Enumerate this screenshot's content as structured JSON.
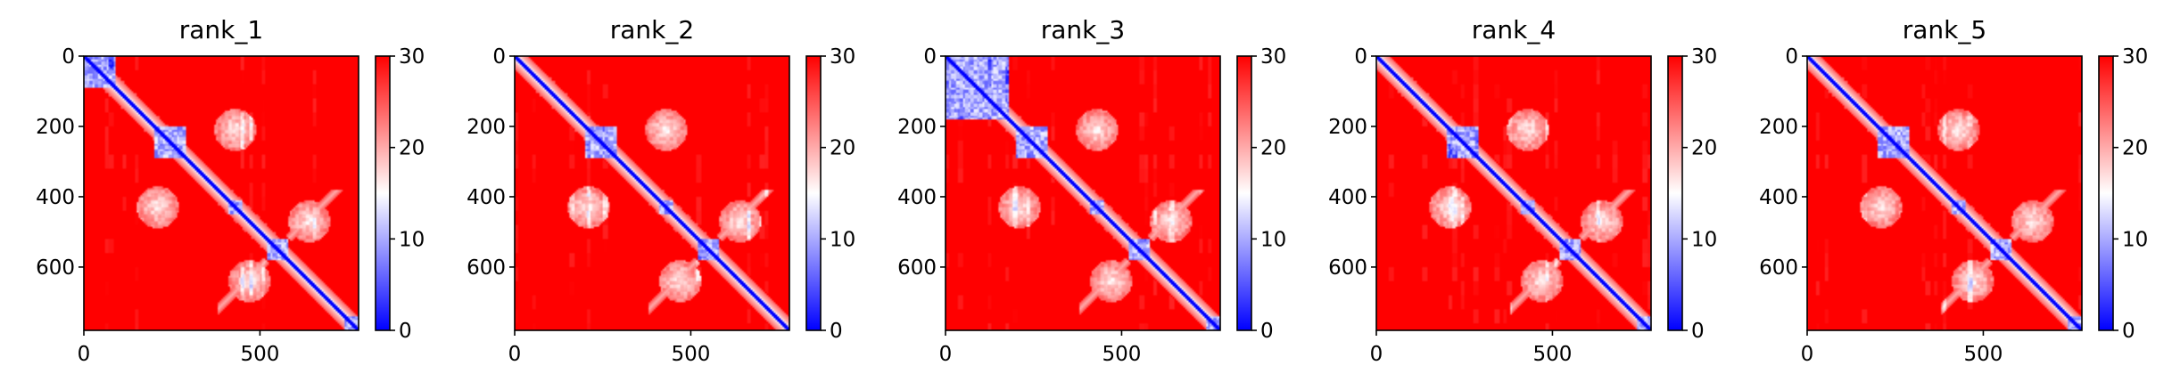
{
  "chart_data": [
    {
      "type": "heatmap",
      "title": "rank_1",
      "matrix_size": 780,
      "xlim": [
        0,
        780
      ],
      "ylim": [
        780,
        0
      ],
      "x_ticks": [
        0,
        500
      ],
      "y_ticks": [
        0,
        200,
        400,
        600
      ],
      "colorbar": {
        "range": [
          0,
          30
        ],
        "ticks": [
          0,
          10,
          20,
          30
        ],
        "colormap": "bwr"
      },
      "value_range": [
        0,
        30
      ],
      "diagonal_domains": [
        [
          0,
          90
        ],
        [
          200,
          290
        ],
        [
          410,
          450
        ],
        [
          520,
          580
        ],
        [
          740,
          780
        ]
      ],
      "contact_blocks": [
        [
          210,
          430
        ],
        [
          470,
          640
        ]
      ]
    },
    {
      "type": "heatmap",
      "title": "rank_2",
      "matrix_size": 780,
      "xlim": [
        0,
        780
      ],
      "ylim": [
        780,
        0
      ],
      "x_ticks": [
        0,
        500
      ],
      "y_ticks": [
        0,
        200,
        400,
        600
      ],
      "colorbar": {
        "range": [
          0,
          30
        ],
        "ticks": [
          0,
          10,
          20,
          30
        ],
        "colormap": "bwr"
      },
      "value_range": [
        0,
        30
      ],
      "diagonal_domains": [
        [
          200,
          290
        ],
        [
          410,
          450
        ],
        [
          520,
          580
        ]
      ],
      "contact_blocks": [
        [
          210,
          430
        ],
        [
          470,
          640
        ]
      ]
    },
    {
      "type": "heatmap",
      "title": "rank_3",
      "matrix_size": 780,
      "xlim": [
        0,
        780
      ],
      "ylim": [
        780,
        0
      ],
      "x_ticks": [
        0,
        500
      ],
      "y_ticks": [
        0,
        200,
        400,
        600
      ],
      "colorbar": {
        "range": [
          0,
          30
        ],
        "ticks": [
          0,
          10,
          20,
          30
        ],
        "colormap": "bwr"
      },
      "value_range": [
        0,
        30
      ],
      "diagonal_domains": [
        [
          0,
          180
        ],
        [
          200,
          290
        ],
        [
          410,
          450
        ],
        [
          520,
          580
        ],
        [
          740,
          780
        ]
      ],
      "contact_blocks": [
        [
          210,
          430
        ],
        [
          470,
          640
        ]
      ]
    },
    {
      "type": "heatmap",
      "title": "rank_4",
      "matrix_size": 780,
      "xlim": [
        0,
        780
      ],
      "ylim": [
        780,
        0
      ],
      "x_ticks": [
        0,
        500
      ],
      "y_ticks": [
        0,
        200,
        400,
        600
      ],
      "colorbar": {
        "range": [
          0,
          30
        ],
        "ticks": [
          0,
          10,
          20,
          30
        ],
        "colormap": "bwr"
      },
      "value_range": [
        0,
        30
      ],
      "diagonal_domains": [
        [
          200,
          290
        ],
        [
          410,
          450
        ],
        [
          520,
          580
        ],
        [
          740,
          780
        ]
      ],
      "contact_blocks": [
        [
          210,
          430
        ],
        [
          470,
          640
        ]
      ]
    },
    {
      "type": "heatmap",
      "title": "rank_5",
      "matrix_size": 780,
      "xlim": [
        0,
        780
      ],
      "ylim": [
        780,
        0
      ],
      "x_ticks": [
        0,
        500
      ],
      "y_ticks": [
        0,
        200,
        400,
        600
      ],
      "colorbar": {
        "range": [
          0,
          30
        ],
        "ticks": [
          0,
          10,
          20,
          30
        ],
        "colormap": "bwr"
      },
      "value_range": [
        0,
        30
      ],
      "diagonal_domains": [
        [
          200,
          290
        ],
        [
          410,
          450
        ],
        [
          520,
          580
        ],
        [
          740,
          780
        ]
      ],
      "contact_blocks": [
        [
          210,
          430
        ],
        [
          470,
          640
        ]
      ]
    }
  ],
  "colors": {
    "low": "#0000ff",
    "mid": "#ffffff",
    "high": "#ff0000"
  }
}
